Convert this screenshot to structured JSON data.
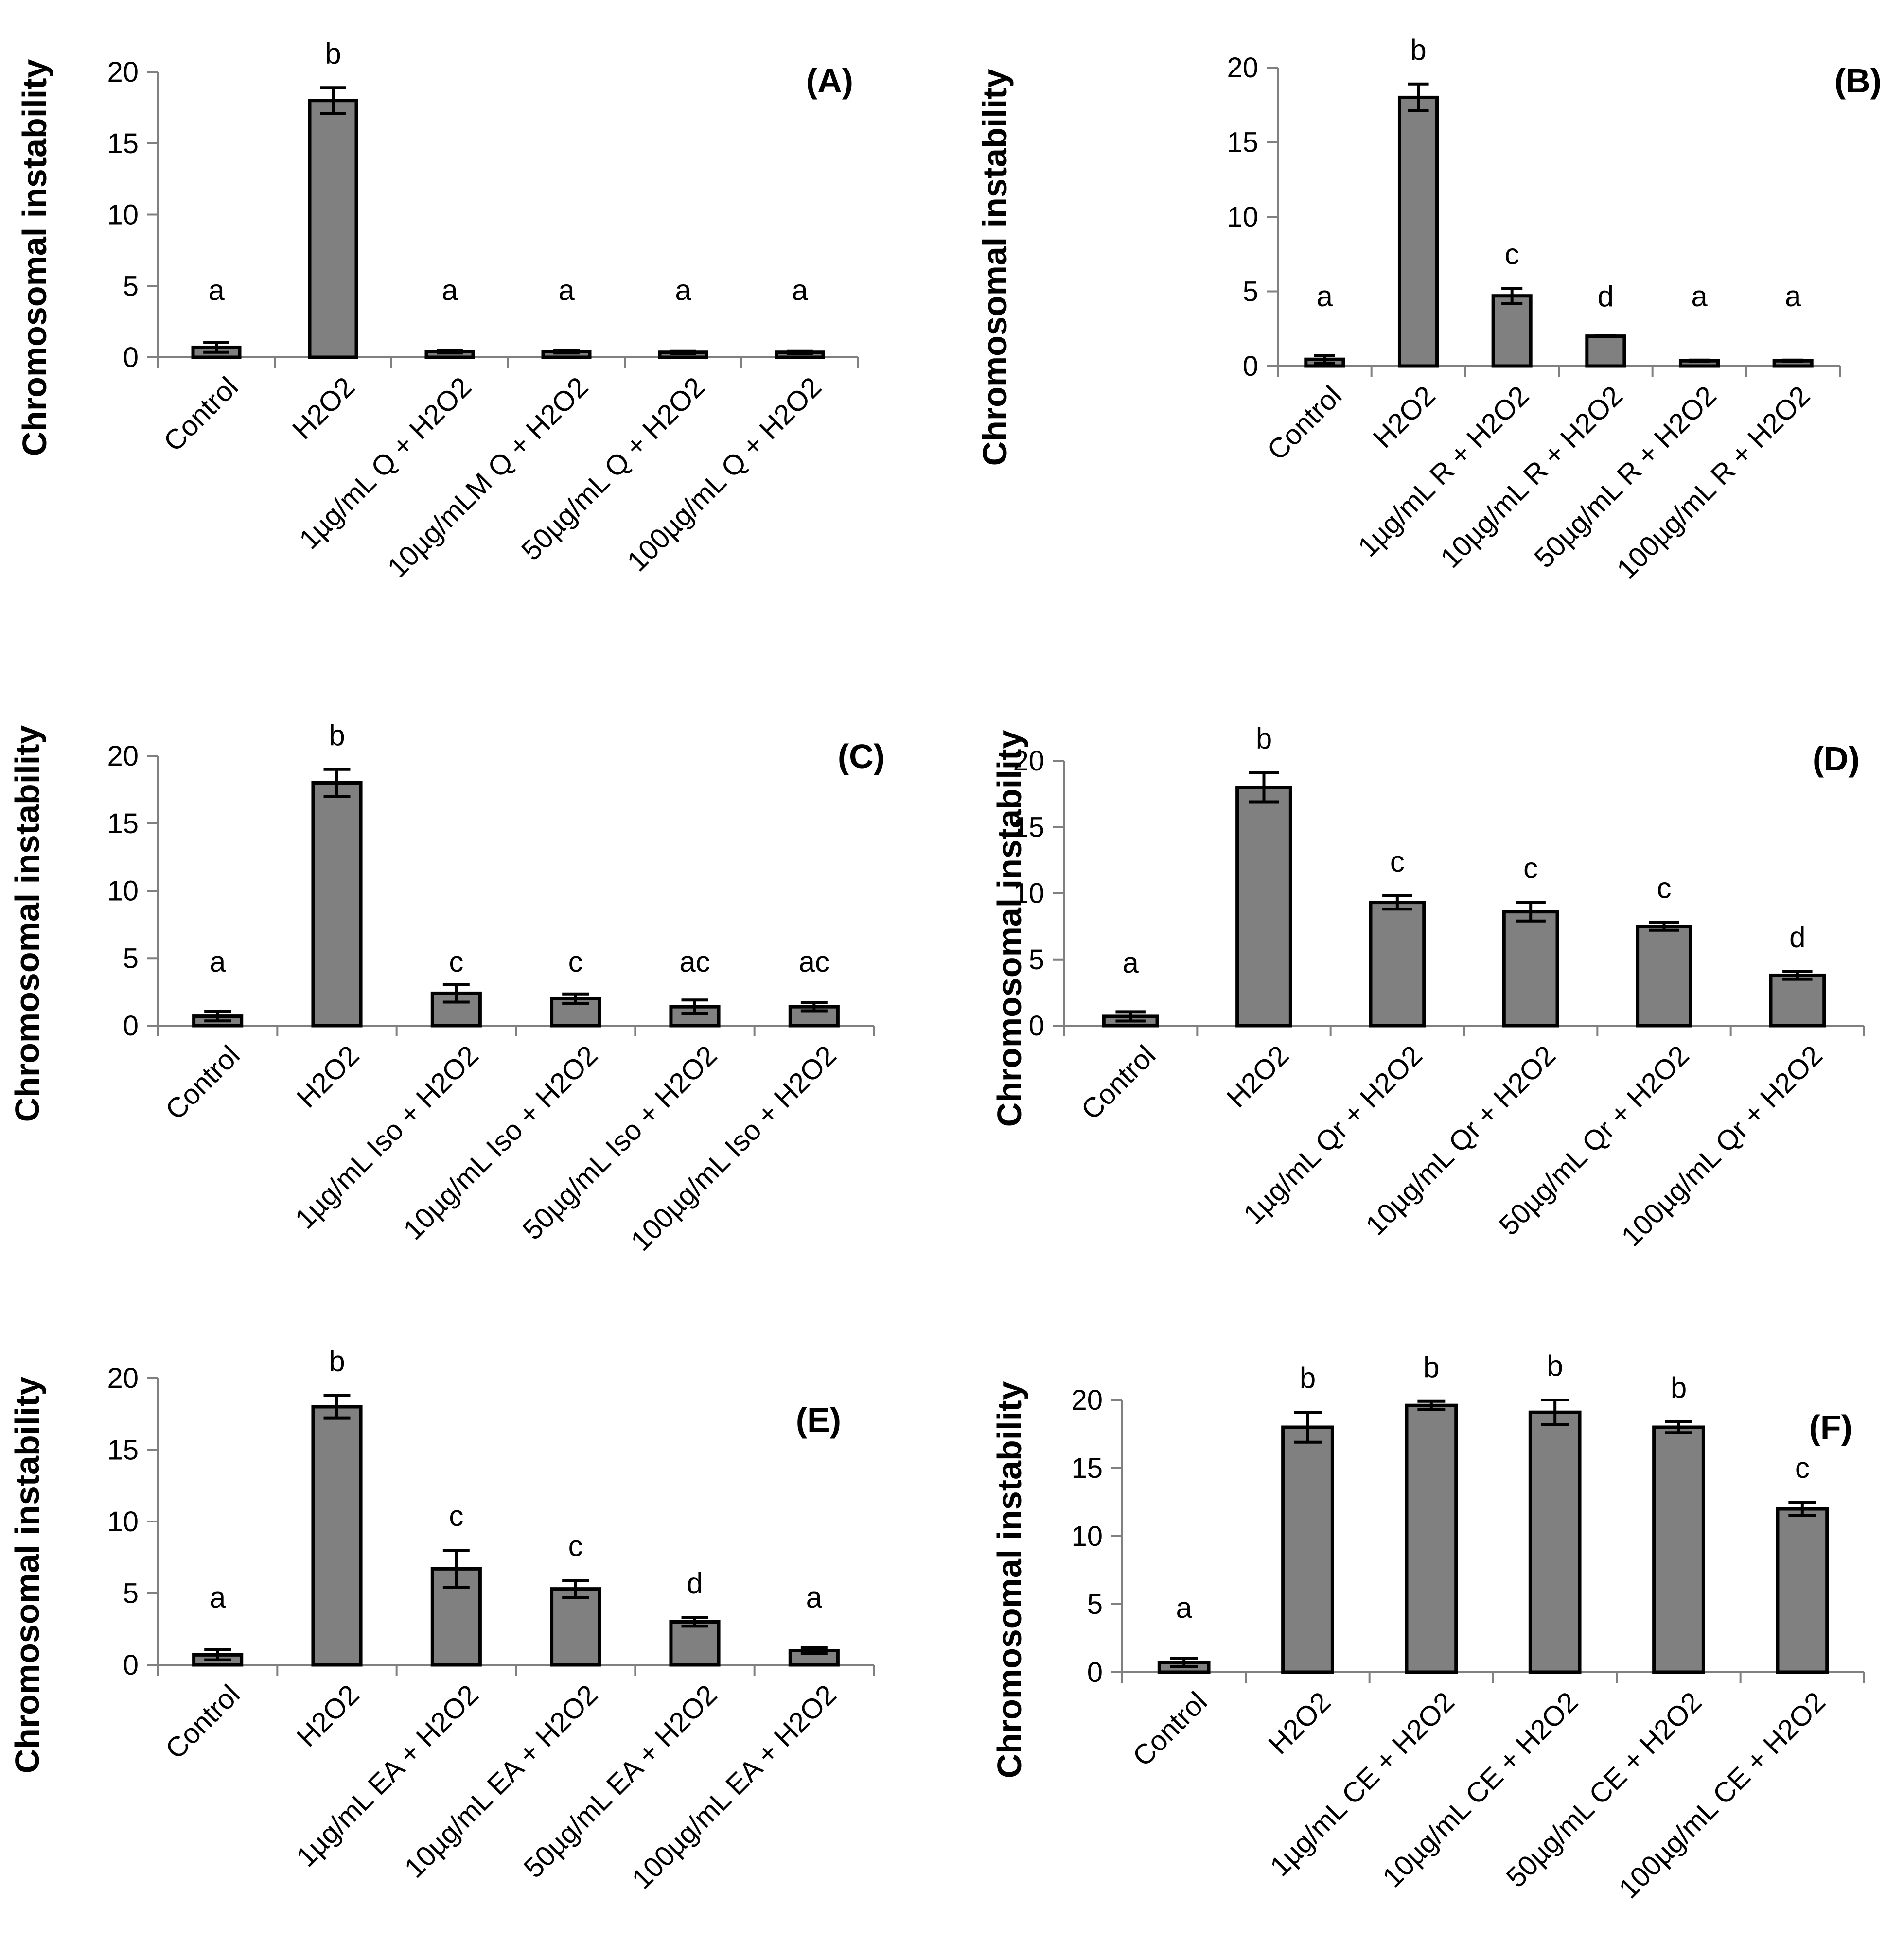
{
  "colors": {
    "bar": "#808080",
    "stroke": "#000000",
    "axis": "#808080"
  },
  "chart_data": [
    {
      "panel": "(A)",
      "type": "bar",
      "ylabel": "Chromosomal instability",
      "ylim": [
        0,
        20
      ],
      "yticks": [
        0,
        5,
        10,
        15,
        20
      ],
      "categories": [
        "Control",
        "H2O2",
        "1µg/mL Q + H2O2",
        "10µg/mLM Q + H2O2",
        "50µg/mL Q + H2O2",
        "100µg/mL Q + H2O2"
      ],
      "values": [
        0.7,
        18.0,
        0.4,
        0.4,
        0.35,
        0.35
      ],
      "errors": [
        0.35,
        0.9,
        0.1,
        0.1,
        0.1,
        0.1
      ],
      "letters": [
        "a",
        "b",
        "a",
        "a",
        "a",
        "a"
      ]
    },
    {
      "panel": "(B)",
      "type": "bar",
      "ylabel": "Chromosomal instability",
      "ylim": [
        0,
        20
      ],
      "yticks": [
        0,
        5,
        10,
        15,
        20
      ],
      "categories": [
        "Control",
        "H2O2",
        "1µg/mL R + H2O2",
        "10µg/mL R + H2O2",
        "50µg/mL R + H2O2",
        "100µg/mL R + H2O2"
      ],
      "values": [
        0.45,
        18.0,
        4.7,
        2.0,
        0.35,
        0.35
      ],
      "errors": [
        0.25,
        0.9,
        0.5,
        0.02,
        0.05,
        0.05
      ],
      "letters": [
        "a",
        "b",
        "c",
        "d",
        "a",
        "a"
      ]
    },
    {
      "panel": "(C)",
      "type": "bar",
      "ylabel": "Chromosomal instability",
      "ylim": [
        0,
        20
      ],
      "yticks": [
        0,
        5,
        10,
        15,
        20
      ],
      "categories": [
        "Control",
        "H2O2",
        "1µg/mL Iso + H2O2",
        "10µg/mL Iso + H2O2",
        "50µg/mL Iso + H2O2",
        "100µg/mL Iso + H2O2"
      ],
      "values": [
        0.7,
        18.0,
        2.4,
        2.0,
        1.4,
        1.4
      ],
      "errors": [
        0.35,
        1.0,
        0.65,
        0.35,
        0.5,
        0.3
      ],
      "letters": [
        "a",
        "b",
        "c",
        "c",
        "ac",
        "ac"
      ]
    },
    {
      "panel": "(D)",
      "type": "bar",
      "ylabel": "Chromosomal instability",
      "ylim": [
        0,
        20
      ],
      "yticks": [
        0,
        5,
        10,
        15,
        20
      ],
      "categories": [
        "Control",
        "H2O2",
        "1µg/mL Qr + H2O2",
        "10µg/mL Qr + H2O2",
        "50µg/mL Qr + H2O2",
        "100µg/mL Qr + H2O2"
      ],
      "values": [
        0.7,
        18.0,
        9.3,
        8.6,
        7.5,
        3.8
      ],
      "errors": [
        0.35,
        1.1,
        0.5,
        0.7,
        0.3,
        0.3
      ],
      "letters": [
        "a",
        "b",
        "c",
        "c",
        "c",
        "d"
      ]
    },
    {
      "panel": "(E)",
      "type": "bar",
      "ylabel": "Chromosomal instability",
      "ylim": [
        0,
        20
      ],
      "yticks": [
        0,
        5,
        10,
        15,
        20
      ],
      "categories": [
        "Control",
        "H2O2",
        "1µg/mL EA + H2O2",
        "10µg/mL EA + H2O2",
        "50µg/mL EA + H2O2",
        "100µg/mL EA + H2O2"
      ],
      "values": [
        0.7,
        18.0,
        6.7,
        5.3,
        3.0,
        1.0
      ],
      "errors": [
        0.35,
        0.8,
        1.3,
        0.6,
        0.3,
        0.2
      ],
      "letters": [
        "a",
        "b",
        "c",
        "c",
        "d",
        "a"
      ]
    },
    {
      "panel": "(F)",
      "type": "bar",
      "ylabel": "Chromosomal instability",
      "ylim": [
        0,
        20
      ],
      "yticks": [
        0,
        5,
        10,
        15,
        20
      ],
      "categories": [
        "Control",
        "H2O2",
        "1µg/mL CE + H2O2",
        "10µg/mL CE + H2O2",
        "50µg/mL CE + H2O2",
        "100µg/mL CE + H2O2"
      ],
      "values": [
        0.7,
        18.0,
        19.6,
        19.1,
        18.0,
        12.0
      ],
      "errors": [
        0.3,
        1.1,
        0.3,
        0.9,
        0.4,
        0.5
      ],
      "letters": [
        "a",
        "b",
        "b",
        "b",
        "b",
        "c"
      ]
    }
  ]
}
